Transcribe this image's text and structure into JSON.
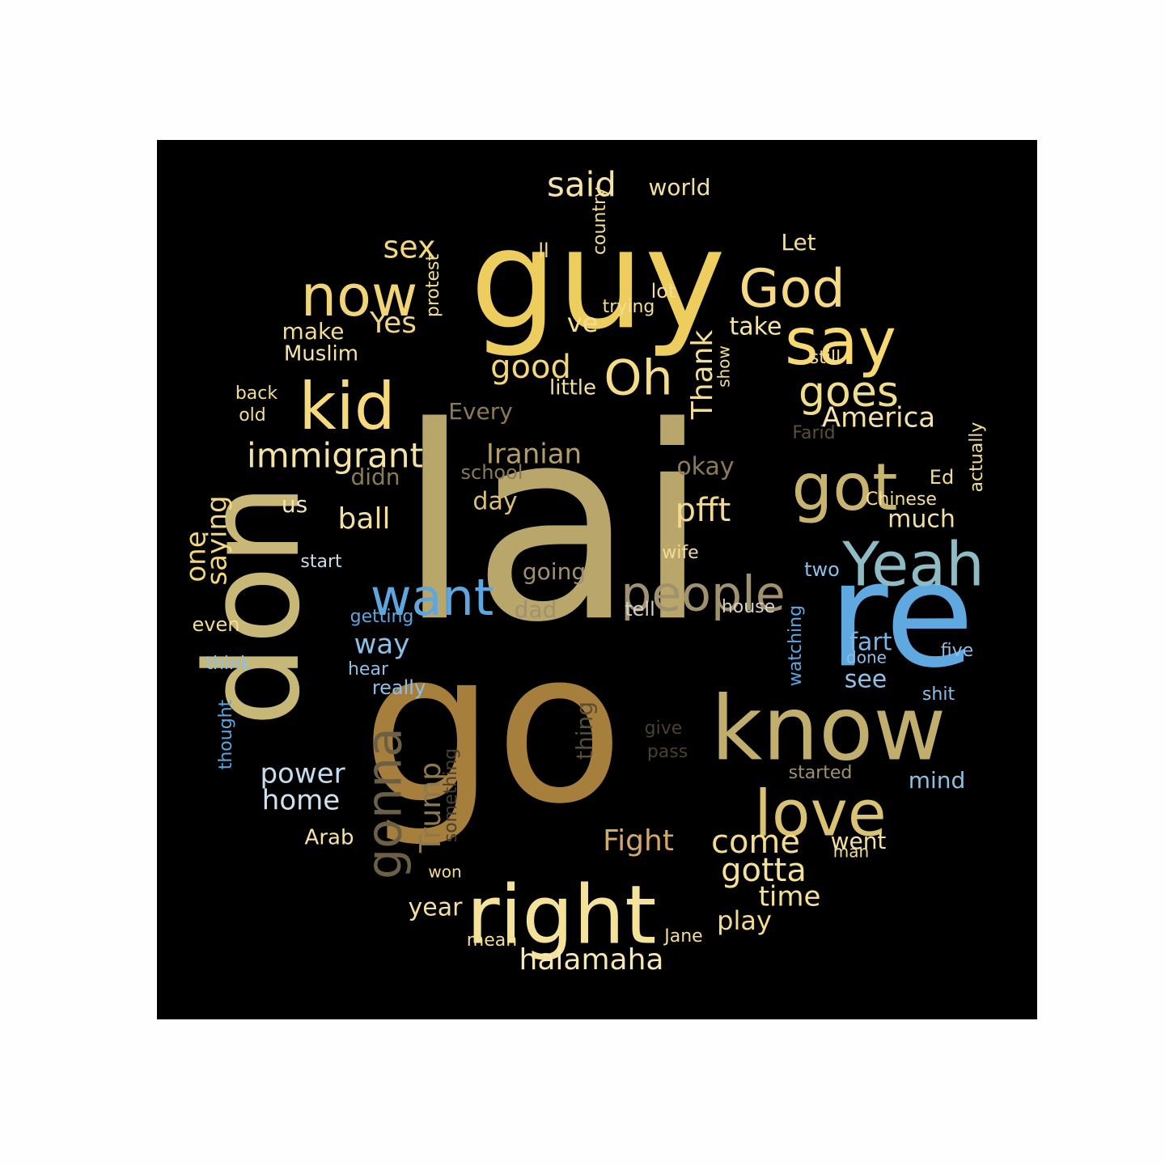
{
  "background_color": "#000000",
  "page_background": "#fefefe",
  "words": [
    {
      "text": "lai",
      "color": "#b9a66b"
    },
    {
      "text": "go",
      "color": "#a77f3d"
    },
    {
      "text": "guy",
      "color": "#eccd5e"
    },
    {
      "text": "don",
      "color": "#c8b878"
    },
    {
      "text": "re",
      "color": "#5fa8e0"
    },
    {
      "text": "know",
      "color": "#c2ae6c"
    },
    {
      "text": "right",
      "color": "#f5e29a"
    },
    {
      "text": "kid",
      "color": "#f6d97c"
    },
    {
      "text": "now",
      "color": "#f0d476"
    },
    {
      "text": "say",
      "color": "#f7d871"
    },
    {
      "text": "God",
      "color": "#f6d982"
    },
    {
      "text": "Yeah",
      "color": "#8fbcc4"
    },
    {
      "text": "got",
      "color": "#c8b46e"
    },
    {
      "text": "love",
      "color": "#d9c273"
    },
    {
      "text": "want",
      "color": "#5ea6e0"
    },
    {
      "text": "people",
      "color": "#a0916f"
    },
    {
      "text": "gonna",
      "color": "#6b5f46"
    },
    {
      "text": "Oh",
      "color": "#f5dc86"
    },
    {
      "text": "goes",
      "color": "#f0dc8a"
    },
    {
      "text": "immigrant",
      "color": "#f5e3a6"
    },
    {
      "text": "said",
      "color": "#f6e4a6"
    },
    {
      "text": "pfft",
      "color": "#f1d990"
    },
    {
      "text": "good",
      "color": "#f3d77c"
    },
    {
      "text": "Trump",
      "color": "#8c7a4f"
    },
    {
      "text": "gotta",
      "color": "#f6e19a"
    },
    {
      "text": "come",
      "color": "#f5db8c"
    },
    {
      "text": "sex",
      "color": "#f3d77c"
    },
    {
      "text": "Thank",
      "color": "#f3dd94"
    },
    {
      "text": "America",
      "color": "#f3e2ab"
    },
    {
      "text": "Iranian",
      "color": "#b59e64"
    },
    {
      "text": "ball",
      "color": "#f3e0a0"
    },
    {
      "text": "Yes",
      "color": "#f0d38a"
    },
    {
      "text": "Fight",
      "color": "#d4a966"
    },
    {
      "text": "halamaha",
      "color": "#f6e7b4"
    },
    {
      "text": "saying",
      "color": "#f3d77c"
    },
    {
      "text": "one",
      "color": "#f3d478"
    },
    {
      "text": "power",
      "color": "#c4dcef"
    },
    {
      "text": "home",
      "color": "#cde3f2"
    },
    {
      "text": "way",
      "color": "#8cbfe8"
    },
    {
      "text": "fart",
      "color": "#7ab5e8"
    },
    {
      "text": "see",
      "color": "#8ec1ea"
    },
    {
      "text": "time",
      "color": "#f6e19a"
    },
    {
      "text": "play",
      "color": "#f5dc8c"
    },
    {
      "text": "year",
      "color": "#f3dfa2"
    },
    {
      "text": "ve",
      "color": "#f3dd94"
    },
    {
      "text": "take",
      "color": "#f6e4a6"
    },
    {
      "text": "day",
      "color": "#d9c278"
    },
    {
      "text": "world",
      "color": "#f3e0a0"
    },
    {
      "text": "Let",
      "color": "#f3dd94"
    },
    {
      "text": "make",
      "color": "#f3dd94"
    },
    {
      "text": "Muslim",
      "color": "#f6e4a6"
    },
    {
      "text": "okay",
      "color": "#8a7b56"
    },
    {
      "text": "Every",
      "color": "#8a7b56"
    },
    {
      "text": "didn",
      "color": "#8a7b56"
    },
    {
      "text": "much",
      "color": "#f3e0a0"
    },
    {
      "text": "mind",
      "color": "#8cbfe0"
    },
    {
      "text": "going",
      "color": "#a0916f"
    },
    {
      "text": "dad",
      "color": "#a0916f"
    },
    {
      "text": "went",
      "color": "#f3e0a0"
    },
    {
      "text": "Arab",
      "color": "#f6e4a6"
    },
    {
      "text": "thing",
      "color": "#5a4e36"
    },
    {
      "text": "us",
      "color": "#f3e3b4"
    },
    {
      "text": "little",
      "color": "#f3e0a0"
    },
    {
      "text": "school",
      "color": "#8a7b56"
    },
    {
      "text": "lot",
      "color": "#f3dd94"
    },
    {
      "text": "trying",
      "color": "#f3dd94"
    },
    {
      "text": "ll",
      "color": "#f3dd94"
    },
    {
      "text": "country",
      "color": "#f3dd94"
    },
    {
      "text": "protest",
      "color": "#f3dd94"
    },
    {
      "text": "show",
      "color": "#f3dd94"
    },
    {
      "text": "still",
      "color": "#f3dd94"
    },
    {
      "text": "back",
      "color": "#f3dd94"
    },
    {
      "text": "old",
      "color": "#f3dd94"
    },
    {
      "text": "Farid",
      "color": "#5a4e36"
    },
    {
      "text": "Ed",
      "color": "#f3dd94"
    },
    {
      "text": "Chinese",
      "color": "#f3dd94"
    },
    {
      "text": "actually",
      "color": "#f3dd94"
    },
    {
      "text": "wife",
      "color": "#f3dd94"
    },
    {
      "text": "start",
      "color": "#c9dde8"
    },
    {
      "text": "two",
      "color": "#8cbfe8"
    },
    {
      "text": "tell",
      "color": "#d6d2c6"
    },
    {
      "text": "house",
      "color": "#d6d2c6"
    },
    {
      "text": "getting",
      "color": "#5ea6e0"
    },
    {
      "text": "even",
      "color": "#f3dd94"
    },
    {
      "text": "think",
      "color": "#8cbfe8"
    },
    {
      "text": "hear",
      "color": "#8cbfe8"
    },
    {
      "text": "really",
      "color": "#8cbfe8"
    },
    {
      "text": "watching",
      "color": "#5ea6e0"
    },
    {
      "text": "done",
      "color": "#8cbfe8"
    },
    {
      "text": "five",
      "color": "#8cbfe8"
    },
    {
      "text": "shit",
      "color": "#8cbfe8"
    },
    {
      "text": "thought",
      "color": "#5ea6e0"
    },
    {
      "text": "give",
      "color": "#4a4030"
    },
    {
      "text": "pass",
      "color": "#4a4030"
    },
    {
      "text": "started",
      "color": "#a0916f"
    },
    {
      "text": "something",
      "color": "#4a4030"
    },
    {
      "text": "won",
      "color": "#f3dd94"
    },
    {
      "text": "man",
      "color": "#f3dd94"
    },
    {
      "text": "mean",
      "color": "#f3dd94"
    },
    {
      "text": "Jane",
      "color": "#f3dd94"
    }
  ]
}
